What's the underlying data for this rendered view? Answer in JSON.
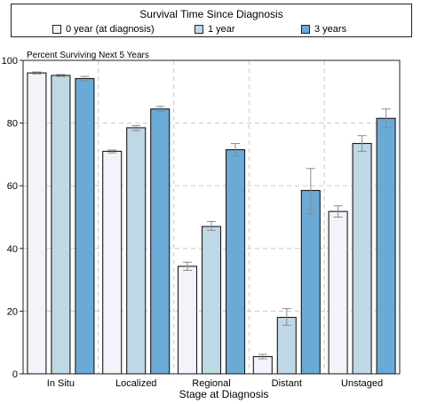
{
  "chart_data": {
    "type": "bar",
    "title": "Survival Time Since Diagnosis",
    "subtitle": "Percent Surviving Next 5 Years",
    "xlabel": "Stage at Diagnosis",
    "ylabel": "",
    "ylim": [
      0,
      100
    ],
    "yticks": [
      "0",
      "20",
      "40",
      "60",
      "80",
      "100"
    ],
    "grid": true,
    "legend_position": "top",
    "categories": [
      "In Situ",
      "Localized",
      "Regional",
      "Distant",
      "Unstaged"
    ],
    "series": [
      {
        "name": "0 year (at diagnosis)",
        "color": "#f3f4fb",
        "values": [
          96.0,
          71.0,
          34.3,
          5.5,
          51.8
        ],
        "err_low": [
          95.7,
          70.5,
          33.0,
          4.8,
          50.0
        ],
        "err_high": [
          96.3,
          71.4,
          35.6,
          6.2,
          53.6
        ]
      },
      {
        "name": "1 year",
        "color": "#bfd8e6",
        "values": [
          95.2,
          78.5,
          47.0,
          18.0,
          73.5
        ],
        "err_low": [
          94.9,
          77.6,
          45.8,
          15.5,
          71.0
        ],
        "err_high": [
          95.5,
          79.2,
          48.6,
          20.8,
          76.0
        ]
      },
      {
        "name": "3 years",
        "color": "#6aaad6",
        "values": [
          94.2,
          84.5,
          71.5,
          58.5,
          81.5
        ],
        "err_low": [
          93.5,
          83.7,
          69.5,
          51.0,
          78.5
        ],
        "err_high": [
          94.9,
          85.3,
          73.5,
          65.5,
          84.5
        ]
      }
    ]
  }
}
